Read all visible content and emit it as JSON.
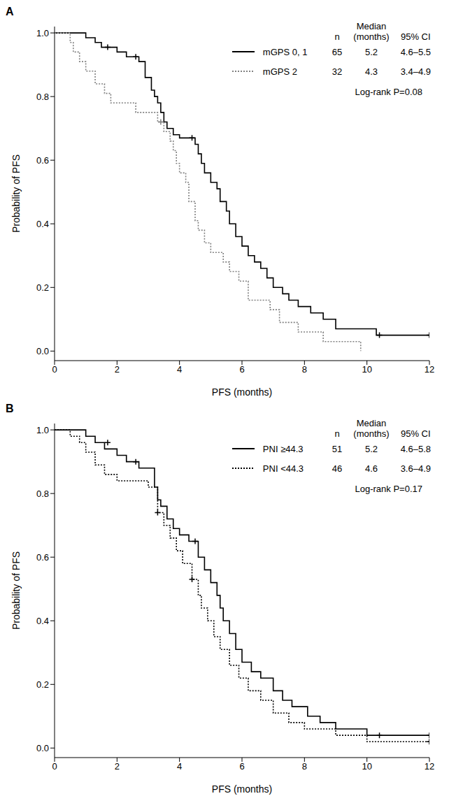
{
  "chart_data": [
    {
      "type": "line",
      "title": "A",
      "x_label": "PFS (months)",
      "y_label": "Probability of PFS",
      "xlim": [
        0,
        12
      ],
      "xticks": [
        0,
        2,
        4,
        6,
        8,
        10,
        12
      ],
      "ylim": [
        -0.03,
        1.02
      ],
      "yticks": [
        {
          "value": 0,
          "label": "0.0"
        },
        {
          "value": 0.2,
          "label": "0.2"
        },
        {
          "value": 0.4,
          "label": "0.4"
        },
        {
          "value": 0.6,
          "label": "0.6"
        },
        {
          "value": 0.8,
          "label": "0.8"
        },
        {
          "value": 1,
          "label": "1.0"
        }
      ],
      "table_columns": [
        "n",
        "Median\n(months)",
        "95% CI"
      ],
      "annotation": "Log-rank P=0.08",
      "series": [
        {
          "name": "mGPS 0, 1",
          "color": "#000000",
          "line_style": "solid",
          "n": 65,
          "median": 5.2,
          "ci": "4.6–5.5",
          "x": [
            0,
            1.0,
            1.3,
            1.5,
            2.0,
            2.3,
            2.7,
            2.9,
            3.1,
            3.2,
            3.3,
            3.4,
            3.5,
            3.6,
            3.8,
            4.0,
            4.5,
            4.6,
            4.7,
            4.8,
            5.0,
            5.2,
            5.3,
            5.5,
            5.6,
            5.8,
            6.0,
            6.2,
            6.4,
            6.6,
            6.8,
            7.0,
            7.3,
            7.5,
            7.8,
            8.2,
            8.6,
            9.0,
            10.3,
            12
          ],
          "values": [
            1.0,
            0.985,
            0.97,
            0.955,
            0.94,
            0.925,
            0.91,
            0.86,
            0.82,
            0.8,
            0.78,
            0.75,
            0.72,
            0.7,
            0.68,
            0.67,
            0.65,
            0.62,
            0.59,
            0.56,
            0.53,
            0.51,
            0.47,
            0.44,
            0.4,
            0.36,
            0.33,
            0.3,
            0.28,
            0.26,
            0.23,
            0.2,
            0.18,
            0.16,
            0.14,
            0.12,
            0.1,
            0.07,
            0.05,
            0.05
          ],
          "censored": {
            "x": [
              1.7,
              2.6,
              4.4,
              10.4,
              12
            ],
            "y": [
              0.955,
              0.925,
              0.67,
              0.05,
              0.05
            ]
          }
        },
        {
          "name": "mGPS 2",
          "color": "#808080",
          "line_style": "dotted",
          "n": 32,
          "median": 4.3,
          "ci": "3.4–4.9",
          "x": [
            0,
            0.5,
            0.6,
            0.8,
            1.0,
            1.3,
            1.6,
            1.8,
            2.6,
            3.3,
            3.5,
            3.7,
            3.8,
            3.9,
            4.0,
            4.2,
            4.3,
            4.5,
            4.6,
            4.8,
            5.0,
            5.4,
            5.6,
            5.9,
            6.2,
            6.9,
            7.2,
            7.8,
            8.6,
            9.8
          ],
          "values": [
            1.0,
            0.97,
            0.94,
            0.91,
            0.88,
            0.84,
            0.81,
            0.78,
            0.75,
            0.72,
            0.69,
            0.66,
            0.63,
            0.59,
            0.56,
            0.53,
            0.47,
            0.41,
            0.38,
            0.34,
            0.31,
            0.28,
            0.25,
            0.22,
            0.16,
            0.13,
            0.09,
            0.06,
            0.03,
            0.0
          ],
          "censored": {
            "x": [
              3.4
            ],
            "y": [
              0.72
            ]
          }
        }
      ]
    },
    {
      "type": "line",
      "title": "B",
      "x_label": "PFS (months)",
      "y_label": "Probability of PFS",
      "xlim": [
        0,
        12
      ],
      "xticks": [
        0,
        2,
        4,
        6,
        8,
        10,
        12
      ],
      "ylim": [
        -0.03,
        1.02
      ],
      "yticks": [
        {
          "value": 0,
          "label": "0.0"
        },
        {
          "value": 0.2,
          "label": "0.2"
        },
        {
          "value": 0.4,
          "label": "0.4"
        },
        {
          "value": 0.6,
          "label": "0.6"
        },
        {
          "value": 0.8,
          "label": "0.8"
        },
        {
          "value": 1,
          "label": "1.0"
        }
      ],
      "table_columns": [
        "n",
        "Median\n(months)",
        "95% CI"
      ],
      "annotation": "Log-rank P=0.17",
      "series": [
        {
          "name": "PNI ≥44.3",
          "color": "#000000",
          "line_style": "solid",
          "n": 51,
          "median": 5.2,
          "ci": "4.6–5.8",
          "x": [
            0,
            1.0,
            1.3,
            1.6,
            2.0,
            2.3,
            2.7,
            3.2,
            3.3,
            3.4,
            3.6,
            3.8,
            4.0,
            4.3,
            4.6,
            4.8,
            5.0,
            5.2,
            5.3,
            5.4,
            5.6,
            5.8,
            6.0,
            6.3,
            6.6,
            7.0,
            7.3,
            7.6,
            8.1,
            8.5,
            9.0,
            10.0,
            12
          ],
          "values": [
            1.0,
            0.98,
            0.96,
            0.94,
            0.92,
            0.9,
            0.88,
            0.82,
            0.78,
            0.76,
            0.72,
            0.69,
            0.67,
            0.65,
            0.6,
            0.56,
            0.52,
            0.48,
            0.44,
            0.4,
            0.36,
            0.31,
            0.27,
            0.24,
            0.22,
            0.18,
            0.15,
            0.13,
            0.1,
            0.08,
            0.06,
            0.04,
            0.04
          ],
          "censored": {
            "x": [
              1.7,
              2.6,
              4.5,
              10.4,
              12
            ],
            "y": [
              0.96,
              0.9,
              0.65,
              0.04,
              0.04
            ]
          }
        },
        {
          "name": "PNI <44.3",
          "color": "#000000",
          "line_style": "dotted",
          "n": 46,
          "median": 4.6,
          "ci": "3.6–4.9",
          "x": [
            0,
            0.5,
            0.8,
            1.0,
            1.3,
            1.6,
            2.0,
            2.5,
            3.0,
            3.3,
            3.5,
            3.7,
            3.9,
            4.1,
            4.4,
            4.6,
            4.7,
            4.9,
            5.1,
            5.3,
            5.6,
            5.9,
            6.2,
            6.6,
            7.0,
            7.5,
            8.0,
            9.0,
            10.0,
            12
          ],
          "values": [
            1.0,
            0.98,
            0.96,
            0.93,
            0.89,
            0.86,
            0.84,
            0.84,
            0.82,
            0.74,
            0.7,
            0.66,
            0.62,
            0.58,
            0.53,
            0.48,
            0.44,
            0.4,
            0.35,
            0.31,
            0.26,
            0.22,
            0.18,
            0.15,
            0.11,
            0.08,
            0.06,
            0.04,
            0.02,
            0.02
          ],
          "censored": {
            "x": [
              3.3,
              4.4,
              12
            ],
            "y": [
              0.74,
              0.53,
              0.02
            ]
          }
        }
      ]
    }
  ]
}
